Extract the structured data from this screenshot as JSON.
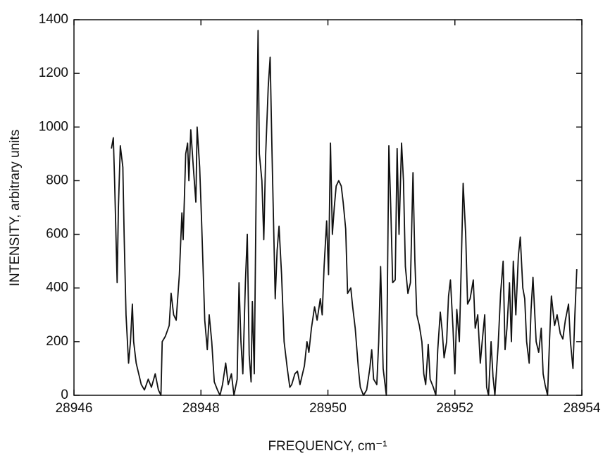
{
  "chart_data": {
    "type": "line",
    "x_label": "FREQUENCY, cm⁻¹",
    "y_label": "INTENSITY, arbitrary units",
    "color": "#111111",
    "xlim": [
      28946,
      28954
    ],
    "xticks": [
      28946,
      28948,
      28950,
      28952,
      28954
    ],
    "ylim": [
      0,
      1400
    ],
    "yticks": [
      0,
      200,
      400,
      600,
      800,
      1000,
      1200,
      1400
    ],
    "grid": false,
    "x": [
      28946.59,
      28946.62,
      28946.64,
      28946.68,
      28946.7,
      28946.73,
      28946.77,
      28946.79,
      28946.82,
      28946.86,
      28946.89,
      28946.92,
      28946.94,
      28946.98,
      28947.02,
      28947.06,
      28947.11,
      28947.17,
      28947.22,
      28947.28,
      28947.33,
      28947.37,
      28947.39,
      28947.44,
      28947.5,
      28947.53,
      28947.57,
      28947.61,
      28947.66,
      28947.7,
      28947.72,
      28947.76,
      28947.79,
      28947.81,
      28947.84,
      28947.88,
      28947.92,
      28947.94,
      28947.98,
      28948.01,
      28948.06,
      28948.1,
      28948.13,
      28948.17,
      28948.21,
      28948.26,
      28948.3,
      28948.34,
      28948.39,
      28948.43,
      28948.48,
      28948.52,
      28948.57,
      28948.6,
      28948.63,
      28948.66,
      28948.7,
      28948.73,
      28948.76,
      28948.79,
      28948.81,
      28948.84,
      28948.88,
      28948.9,
      28948.92,
      28948.96,
      28948.99,
      28949.02,
      28949.06,
      28949.09,
      28949.12,
      28949.17,
      28949.2,
      28949.23,
      28949.27,
      28949.31,
      28949.36,
      28949.4,
      28949.43,
      28949.48,
      28949.52,
      28949.56,
      28949.59,
      28949.63,
      28949.67,
      28949.7,
      28949.74,
      28949.79,
      28949.83,
      28949.88,
      28949.91,
      28949.94,
      28949.98,
      28950.01,
      28950.04,
      28950.07,
      28950.1,
      28950.13,
      28950.17,
      28950.21,
      28950.24,
      28950.28,
      28950.31,
      28950.36,
      28950.39,
      28950.43,
      28950.48,
      28950.51,
      28950.56,
      28950.61,
      28950.66,
      28950.69,
      28950.72,
      28950.77,
      28950.8,
      28950.83,
      28950.87,
      28950.92,
      28950.96,
      28950.99,
      28951.02,
      28951.06,
      28951.09,
      28951.12,
      28951.16,
      28951.19,
      28951.22,
      28951.26,
      28951.3,
      28951.34,
      28951.37,
      28951.4,
      28951.44,
      28951.48,
      28951.51,
      28951.54,
      28951.58,
      28951.61,
      28951.66,
      28951.7,
      28951.73,
      28951.77,
      28951.8,
      28951.83,
      28951.87,
      28951.9,
      28951.93,
      28951.97,
      28952.0,
      28952.03,
      28952.07,
      28952.1,
      28952.13,
      28952.17,
      28952.2,
      28952.24,
      28952.29,
      28952.32,
      28952.36,
      28952.4,
      28952.43,
      28952.47,
      28952.5,
      28952.53,
      28952.57,
      28952.6,
      28952.63,
      28952.68,
      28952.72,
      28952.76,
      28952.79,
      28952.82,
      28952.86,
      28952.89,
      28952.92,
      28952.96,
      28953.0,
      28953.03,
      28953.07,
      28953.1,
      28953.13,
      28953.17,
      28953.2,
      28953.23,
      28953.28,
      28953.32,
      28953.36,
      28953.39,
      28953.42,
      28953.46,
      28953.49,
      28953.52,
      28953.57,
      28953.61,
      28953.66,
      28953.7,
      28953.74,
      28953.79,
      28953.82,
      28953.86,
      28953.89,
      28953.92
    ],
    "values": [
      920,
      960,
      800,
      420,
      700,
      930,
      850,
      600,
      300,
      120,
      200,
      340,
      200,
      120,
      80,
      40,
      20,
      60,
      30,
      80,
      20,
      0,
      200,
      220,
      260,
      380,
      300,
      280,
      450,
      680,
      580,
      900,
      940,
      800,
      990,
      850,
      720,
      1000,
      850,
      650,
      280,
      170,
      300,
      200,
      50,
      20,
      0,
      40,
      120,
      40,
      80,
      0,
      60,
      420,
      200,
      80,
      420,
      600,
      150,
      50,
      350,
      80,
      1000,
      1360,
      900,
      800,
      580,
      900,
      1150,
      1260,
      900,
      360,
      540,
      630,
      450,
      200,
      100,
      30,
      40,
      80,
      90,
      40,
      70,
      110,
      200,
      160,
      250,
      330,
      280,
      360,
      300,
      480,
      650,
      450,
      940,
      600,
      700,
      780,
      800,
      780,
      720,
      620,
      380,
      400,
      330,
      250,
      100,
      30,
      0,
      20,
      100,
      170,
      60,
      40,
      200,
      480,
      100,
      0,
      930,
      700,
      420,
      430,
      920,
      600,
      940,
      800,
      480,
      380,
      420,
      830,
      500,
      300,
      260,
      200,
      80,
      40,
      190,
      60,
      30,
      0,
      170,
      310,
      240,
      140,
      200,
      370,
      430,
      250,
      80,
      320,
      200,
      480,
      790,
      600,
      340,
      360,
      430,
      250,
      300,
      120,
      200,
      300,
      30,
      0,
      200,
      70,
      0,
      180,
      380,
      500,
      170,
      250,
      420,
      200,
      500,
      300,
      520,
      590,
      400,
      360,
      200,
      120,
      320,
      440,
      200,
      160,
      250,
      80,
      40,
      0,
      200,
      370,
      260,
      300,
      230,
      210,
      280,
      340,
      200,
      100,
      300,
      470
    ]
  }
}
